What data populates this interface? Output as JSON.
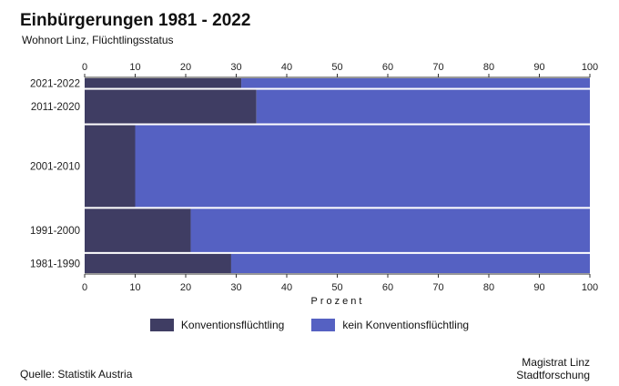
{
  "header": {
    "title": "Einbürgerungen 1981 - 2022",
    "subtitle": "Wohnort Linz, Flüchtlingsstatus"
  },
  "footer": {
    "source": "Quelle: Statistik Austria",
    "credit_line1": "Magistrat Linz",
    "credit_line2": "Stadtforschung"
  },
  "colors": {
    "konvention": "#3f3d63",
    "kein": "#5561c2"
  },
  "chart_data": {
    "type": "bar",
    "orientation": "horizontal",
    "stacked": true,
    "variable_width": true,
    "categories": [
      "2021-2022",
      "2011-2020",
      "2001-2010",
      "1991-2000",
      "1981-1990"
    ],
    "relative_width": [
      2,
      7,
      17,
      9,
      4
    ],
    "series": [
      {
        "name": "Konventionsflüchtling",
        "values": [
          31,
          34,
          10,
          21,
          29
        ]
      },
      {
        "name": "kein Konventionsflüchtling",
        "values": [
          69,
          66,
          90,
          79,
          71
        ]
      }
    ],
    "xlabel": "Prozent",
    "xlim": [
      0,
      100
    ],
    "xticks": [
      0,
      10,
      20,
      30,
      40,
      50,
      60,
      70,
      80,
      90,
      100
    ],
    "grid": false,
    "legend": "bottom"
  }
}
